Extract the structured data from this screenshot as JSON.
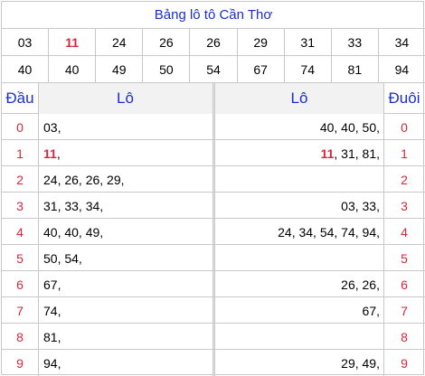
{
  "title": "Bảng lô tô Cần Thơ",
  "numbers_row1": [
    {
      "v": "03",
      "hl": false
    },
    {
      "v": "11",
      "hl": true
    },
    {
      "v": "24",
      "hl": false
    },
    {
      "v": "26",
      "hl": false
    },
    {
      "v": "26",
      "hl": false
    },
    {
      "v": "29",
      "hl": false
    },
    {
      "v": "31",
      "hl": false
    },
    {
      "v": "33",
      "hl": false
    },
    {
      "v": "34",
      "hl": false
    }
  ],
  "numbers_row2": [
    {
      "v": "40",
      "hl": false
    },
    {
      "v": "40",
      "hl": false
    },
    {
      "v": "49",
      "hl": false
    },
    {
      "v": "50",
      "hl": false
    },
    {
      "v": "54",
      "hl": false
    },
    {
      "v": "67",
      "hl": false
    },
    {
      "v": "74",
      "hl": false
    },
    {
      "v": "81",
      "hl": false
    },
    {
      "v": "94",
      "hl": false
    }
  ],
  "headers": {
    "dau": "Đầu",
    "lo_left": "Lô",
    "lo_right": "Lô",
    "duoi": "Đuôi"
  },
  "rows": [
    {
      "dau": "0",
      "lo_left": [
        {
          "t": "03,",
          "hl": false
        }
      ],
      "lo_right": [
        {
          "t": "40, 40, 50,",
          "hl": false
        }
      ],
      "duoi": "0"
    },
    {
      "dau": "1",
      "lo_left": [
        {
          "t": "11",
          "hl": true
        },
        {
          "t": ",",
          "hl": false
        }
      ],
      "lo_right": [
        {
          "t": "11",
          "hl": true
        },
        {
          "t": ", 31, 81,",
          "hl": false
        }
      ],
      "duoi": "1"
    },
    {
      "dau": "2",
      "lo_left": [
        {
          "t": "24, 26, 26, 29,",
          "hl": false
        }
      ],
      "lo_right": [],
      "duoi": "2"
    },
    {
      "dau": "3",
      "lo_left": [
        {
          "t": "31, 33, 34,",
          "hl": false
        }
      ],
      "lo_right": [
        {
          "t": "03, 33,",
          "hl": false
        }
      ],
      "duoi": "3"
    },
    {
      "dau": "4",
      "lo_left": [
        {
          "t": "40, 40, 49,",
          "hl": false
        }
      ],
      "lo_right": [
        {
          "t": "24, 34, 54, 74, 94,",
          "hl": false
        }
      ],
      "duoi": "4"
    },
    {
      "dau": "5",
      "lo_left": [
        {
          "t": "50, 54,",
          "hl": false
        }
      ],
      "lo_right": [],
      "duoi": "5"
    },
    {
      "dau": "6",
      "lo_left": [
        {
          "t": "67,",
          "hl": false
        }
      ],
      "lo_right": [
        {
          "t": "26, 26,",
          "hl": false
        }
      ],
      "duoi": "6"
    },
    {
      "dau": "7",
      "lo_left": [
        {
          "t": "74,",
          "hl": false
        }
      ],
      "lo_right": [
        {
          "t": "67,",
          "hl": false
        }
      ],
      "duoi": "7"
    },
    {
      "dau": "8",
      "lo_left": [
        {
          "t": "81,",
          "hl": false
        }
      ],
      "lo_right": [],
      "duoi": "8"
    },
    {
      "dau": "9",
      "lo_left": [
        {
          "t": "94,",
          "hl": false
        }
      ],
      "lo_right": [
        {
          "t": "29, 49,",
          "hl": false
        }
      ],
      "duoi": "9"
    }
  ],
  "colors": {
    "accent_blue": "#1a2fd0",
    "highlight_red": "#d7263d",
    "border": "#c8c8c8",
    "header_bg": "#f2f2f2"
  }
}
